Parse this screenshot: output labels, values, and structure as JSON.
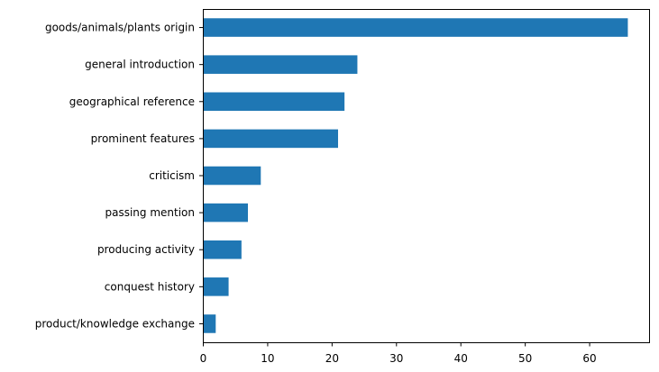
{
  "chart_data": {
    "type": "bar",
    "orientation": "horizontal",
    "categories": [
      "goods/animals/plants origin",
      "general introduction",
      "geographical reference",
      "prominent features",
      "criticism",
      "passing mention",
      "producing activity",
      "conquest history",
      "product/knowledge exchange"
    ],
    "values": [
      66,
      24,
      22,
      21,
      9,
      7,
      6,
      4,
      2
    ],
    "title": "",
    "xlabel": "",
    "ylabel": "",
    "xlim": [
      0,
      69.3
    ],
    "xticks": [
      0,
      10,
      20,
      30,
      40,
      50,
      60
    ],
    "grid": false,
    "legend": "none",
    "bar_color": "#1f77b4"
  }
}
